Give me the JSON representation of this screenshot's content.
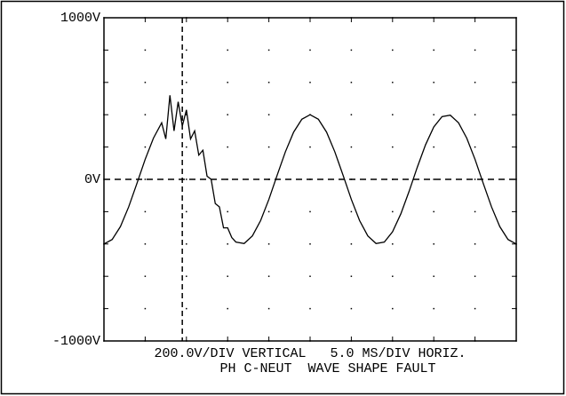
{
  "chart_data": {
    "type": "line",
    "footer": [
      "200.0V/DIV VERTICAL   5.0 MS/DIV HORIZ.",
      "PH C-NEUT  WAVE SHAPE FAULT"
    ],
    "x": [
      0,
      1,
      2,
      3,
      4,
      5,
      6,
      7,
      7.5,
      8,
      8.5,
      9,
      9.5,
      10,
      10.5,
      11,
      11.5,
      12,
      12.5,
      13,
      13.5,
      14,
      14.5,
      15,
      15.5,
      16,
      17,
      18,
      19,
      20,
      21,
      22,
      23,
      24,
      25,
      26,
      27,
      28,
      29,
      30,
      31,
      32,
      33,
      34,
      35,
      36,
      37,
      38,
      39,
      40,
      41,
      42,
      43,
      44,
      45,
      46,
      47,
      48,
      49,
      50
    ],
    "values": [
      -400,
      -372,
      -292,
      -170,
      -25,
      124,
      255,
      350,
      250,
      520,
      300,
      480,
      330,
      430,
      250,
      300,
      150,
      180,
      20,
      0,
      -150,
      -170,
      -300,
      -300,
      -360,
      -388,
      -397,
      -350,
      -255,
      -124,
      25,
      170,
      292,
      372,
      400,
      372,
      292,
      170,
      25,
      -124,
      -255,
      -350,
      -397,
      -388,
      -324,
      -214,
      -75,
      75,
      214,
      324,
      388,
      397,
      350,
      255,
      124,
      -25,
      -170,
      -292,
      -372,
      -400
    ],
    "color": "#000000",
    "xlim": [
      0,
      50
    ],
    "ylim": [
      -1000,
      1000
    ],
    "yticks": [
      {
        "value": -1000,
        "label": "-1000V"
      },
      {
        "value": 0,
        "label": "0V"
      },
      {
        "value": 1000,
        "label": "1000V"
      }
    ],
    "cursor_x": 9.5,
    "grid": true
  }
}
